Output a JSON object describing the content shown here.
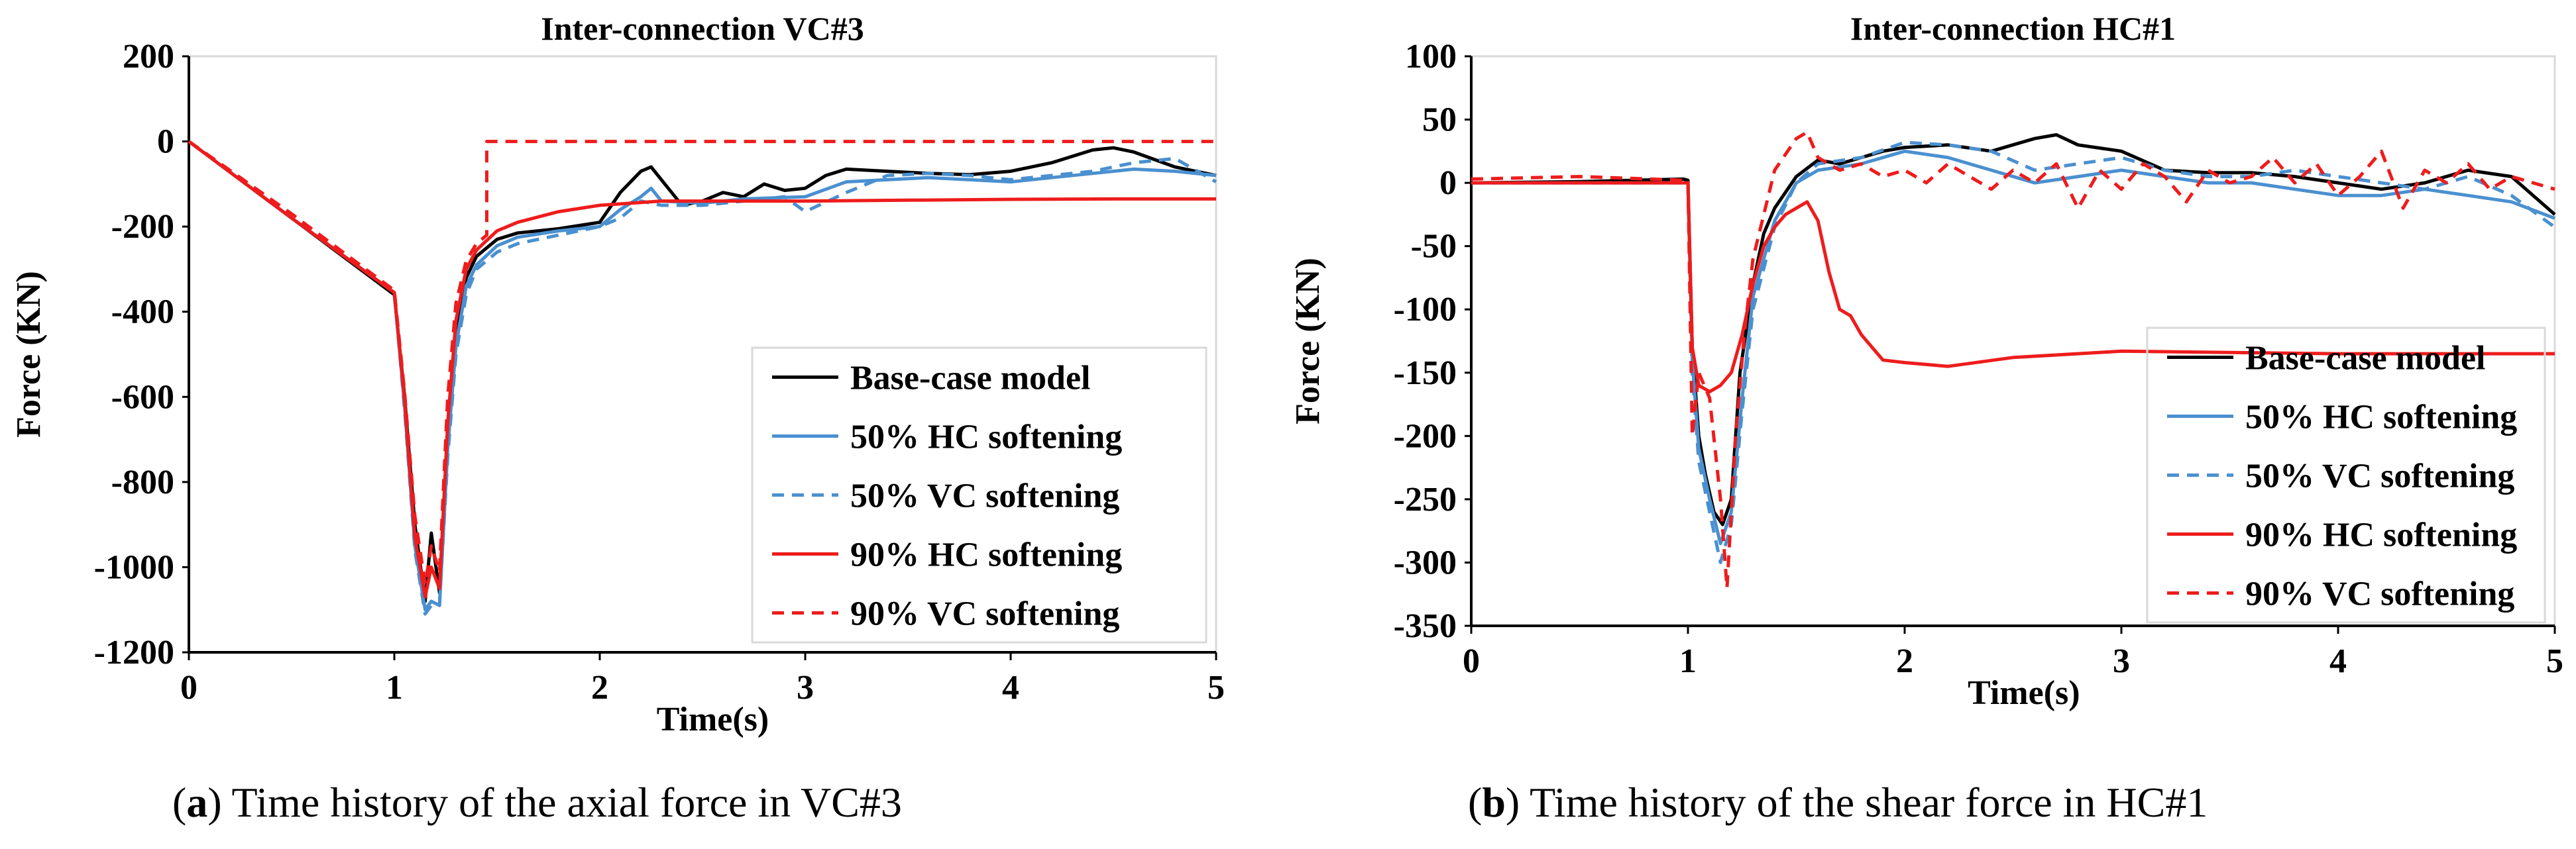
{
  "chart_data": [
    {
      "type": "line",
      "title": "Inter-connection VC#3",
      "xlabel": "Time(s)",
      "ylabel": "Force (KN)",
      "xlim": [
        0,
        5
      ],
      "ylim": [
        -1200,
        200
      ],
      "xticks": [
        "0",
        "1",
        "2",
        "3",
        "4",
        "5"
      ],
      "yticks": [
        "200",
        "0",
        "-200",
        "-400",
        "-600",
        "-800",
        "-1000",
        "-1200"
      ],
      "series": [
        {
          "name": "Base-case model",
          "color": "#000000",
          "dash": false,
          "x": [
            0,
            0.5,
            1.0,
            1.05,
            1.1,
            1.15,
            1.18,
            1.22,
            1.26,
            1.3,
            1.35,
            1.4,
            1.5,
            1.6,
            1.8,
            2.0,
            2.1,
            2.2,
            2.25,
            2.3,
            2.4,
            2.5,
            2.6,
            2.7,
            2.8,
            2.9,
            3.0,
            3.1,
            3.2,
            3.4,
            3.6,
            3.8,
            4.0,
            4.2,
            4.4,
            4.5,
            4.6,
            4.8,
            5.0
          ],
          "y": [
            0,
            -180,
            -360,
            -600,
            -900,
            -1080,
            -920,
            -1060,
            -700,
            -450,
            -320,
            -270,
            -230,
            -215,
            -205,
            -190,
            -120,
            -70,
            -60,
            -90,
            -150,
            -140,
            -120,
            -130,
            -100,
            -115,
            -110,
            -80,
            -65,
            -70,
            -75,
            -78,
            -70,
            -50,
            -20,
            -15,
            -25,
            -60,
            -80
          ]
        },
        {
          "name": "50% HC softening",
          "color": "#4a90d0",
          "dash": false,
          "x": [
            0,
            0.5,
            1.0,
            1.05,
            1.1,
            1.15,
            1.18,
            1.22,
            1.26,
            1.3,
            1.35,
            1.4,
            1.5,
            1.6,
            1.8,
            2.0,
            2.1,
            2.2,
            2.25,
            2.3,
            2.5,
            2.7,
            3.0,
            3.2,
            3.4,
            3.6,
            3.8,
            4.0,
            4.2,
            4.4,
            4.6,
            4.8,
            5.0
          ],
          "y": [
            0,
            -180,
            -355,
            -620,
            -950,
            -1100,
            -1080,
            -1090,
            -720,
            -480,
            -340,
            -290,
            -245,
            -225,
            -210,
            -200,
            -160,
            -130,
            -110,
            -140,
            -145,
            -135,
            -130,
            -95,
            -90,
            -85,
            -90,
            -95,
            -85,
            -75,
            -65,
            -70,
            -80
          ]
        },
        {
          "name": "50% VC softening",
          "color": "#4a90d0",
          "dash": true,
          "x": [
            0,
            0.5,
            1.0,
            1.05,
            1.1,
            1.15,
            1.18,
            1.22,
            1.26,
            1.3,
            1.35,
            1.4,
            1.5,
            1.6,
            1.8,
            2.0,
            2.1,
            2.2,
            2.3,
            2.5,
            2.7,
            2.9,
            3.0,
            3.2,
            3.4,
            3.6,
            3.8,
            4.0,
            4.2,
            4.4,
            4.6,
            4.8,
            5.0
          ],
          "y": [
            0,
            -180,
            -355,
            -630,
            -960,
            -1110,
            -1090,
            -1085,
            -740,
            -500,
            -360,
            -300,
            -260,
            -240,
            -220,
            -200,
            -180,
            -140,
            -150,
            -150,
            -140,
            -130,
            -165,
            -120,
            -80,
            -75,
            -80,
            -90,
            -80,
            -70,
            -50,
            -40,
            -95
          ]
        },
        {
          "name": "90% HC softening",
          "color": "#ee1c1c",
          "dash": false,
          "x": [
            0,
            0.5,
            1.0,
            1.05,
            1.1,
            1.15,
            1.18,
            1.22,
            1.26,
            1.3,
            1.35,
            1.4,
            1.5,
            1.6,
            1.8,
            2.0,
            2.3,
            2.6,
            3.0,
            3.5,
            4.0,
            4.5,
            5.0
          ],
          "y": [
            0,
            -180,
            -355,
            -610,
            -930,
            -1070,
            -1000,
            -1050,
            -660,
            -420,
            -300,
            -255,
            -210,
            -190,
            -165,
            -150,
            -140,
            -140,
            -140,
            -138,
            -136,
            -135,
            -135
          ]
        },
        {
          "name": "90% VC softening",
          "color": "#ee1c1c",
          "dash": true,
          "x": [
            0,
            0.5,
            1.0,
            1.05,
            1.1,
            1.15,
            1.18,
            1.22,
            1.26,
            1.3,
            1.35,
            1.4,
            1.45,
            1.45,
            2.0,
            3.0,
            4.0,
            5.0
          ],
          "y": [
            0,
            -170,
            -350,
            -590,
            -880,
            -1040,
            -950,
            -1010,
            -600,
            -380,
            -280,
            -240,
            -220,
            0,
            0,
            0,
            0,
            0
          ]
        }
      ]
    },
    {
      "type": "line",
      "title": "Inter-connection HC#1",
      "xlabel": "Time(s)",
      "ylabel": "Force (KN)",
      "xlim": [
        0,
        5
      ],
      "ylim": [
        -350,
        100
      ],
      "xticks": [
        "0",
        "1",
        "2",
        "3",
        "4",
        "5"
      ],
      "yticks": [
        "100",
        "50",
        "0",
        "-50",
        "-100",
        "-150",
        "-200",
        "-250",
        "-300",
        "-350"
      ],
      "series": [
        {
          "name": "Base-case model",
          "color": "#000000",
          "dash": false,
          "x": [
            0,
            0.5,
            0.98,
            1.0,
            1.02,
            1.05,
            1.08,
            1.12,
            1.16,
            1.2,
            1.24,
            1.3,
            1.35,
            1.4,
            1.5,
            1.6,
            1.7,
            1.8,
            1.9,
            2.0,
            2.2,
            2.4,
            2.6,
            2.7,
            2.8,
            3.0,
            3.2,
            3.4,
            3.6,
            3.8,
            4.0,
            4.2,
            4.4,
            4.6,
            4.8,
            5.0
          ],
          "y": [
            0,
            1,
            3,
            2,
            -130,
            -200,
            -230,
            -260,
            -270,
            -250,
            -150,
            -80,
            -40,
            -20,
            5,
            18,
            15,
            20,
            25,
            28,
            30,
            25,
            35,
            38,
            30,
            25,
            10,
            8,
            8,
            5,
            0,
            -5,
            0,
            10,
            5,
            -25
          ]
        },
        {
          "name": "50% HC softening",
          "color": "#4a90d0",
          "dash": false,
          "x": [
            0,
            0.5,
            1.0,
            1.02,
            1.05,
            1.1,
            1.15,
            1.2,
            1.25,
            1.3,
            1.4,
            1.5,
            1.6,
            1.8,
            2.0,
            2.2,
            2.4,
            2.6,
            2.8,
            3.0,
            3.2,
            3.4,
            3.6,
            3.8,
            4.0,
            4.2,
            4.4,
            4.6,
            4.8,
            5.0
          ],
          "y": [
            0,
            0,
            0,
            -140,
            -210,
            -250,
            -285,
            -260,
            -170,
            -90,
            -30,
            0,
            10,
            15,
            25,
            20,
            10,
            0,
            5,
            10,
            5,
            0,
            0,
            -5,
            -10,
            -10,
            -5,
            -10,
            -15,
            -28
          ]
        },
        {
          "name": "50% VC softening",
          "color": "#4a90d0",
          "dash": true,
          "x": [
            0,
            0.5,
            1.0,
            1.02,
            1.05,
            1.1,
            1.15,
            1.2,
            1.25,
            1.3,
            1.4,
            1.5,
            1.6,
            1.8,
            2.0,
            2.2,
            2.4,
            2.6,
            2.8,
            3.0,
            3.2,
            3.4,
            3.6,
            3.8,
            4.0,
            4.2,
            4.4,
            4.6,
            4.8,
            5.0
          ],
          "y": [
            0,
            0,
            0,
            -150,
            -220,
            -260,
            -300,
            -270,
            -180,
            -100,
            -35,
            0,
            15,
            20,
            32,
            30,
            25,
            10,
            15,
            20,
            10,
            5,
            5,
            10,
            5,
            0,
            -5,
            5,
            -10,
            -35
          ]
        },
        {
          "name": "90% HC softening",
          "color": "#ee1c1c",
          "dash": false,
          "x": [
            0,
            0.5,
            1.0,
            1.02,
            1.05,
            1.1,
            1.15,
            1.2,
            1.25,
            1.3,
            1.35,
            1.4,
            1.45,
            1.5,
            1.55,
            1.6,
            1.65,
            1.7,
            1.75,
            1.8,
            1.9,
            2.0,
            2.2,
            2.5,
            3.0,
            3.5,
            4.0,
            4.5,
            5.0
          ],
          "y": [
            0,
            0,
            0,
            -130,
            -160,
            -165,
            -160,
            -150,
            -120,
            -80,
            -50,
            -35,
            -25,
            -20,
            -15,
            -30,
            -70,
            -100,
            -105,
            -120,
            -140,
            -142,
            -145,
            -138,
            -133,
            -134,
            -135,
            -135,
            -135
          ]
        },
        {
          "name": "90% VC softening",
          "color": "#ee1c1c",
          "dash": true,
          "x": [
            0,
            0.5,
            1.0,
            1.02,
            1.05,
            1.1,
            1.15,
            1.18,
            1.22,
            1.26,
            1.3,
            1.4,
            1.5,
            1.55,
            1.6,
            1.7,
            1.8,
            1.9,
            2.0,
            2.1,
            2.2,
            2.3,
            2.4,
            2.5,
            2.6,
            2.7,
            2.8,
            2.9,
            3.0,
            3.1,
            3.2,
            3.3,
            3.4,
            3.5,
            3.6,
            3.7,
            3.8,
            3.9,
            4.0,
            4.1,
            4.2,
            4.3,
            4.4,
            4.5,
            4.6,
            4.7,
            4.8,
            4.9,
            5.0
          ],
          "y": [
            3,
            5,
            2,
            -200,
            -150,
            -170,
            -250,
            -320,
            -200,
            -120,
            -60,
            10,
            35,
            40,
            20,
            10,
            15,
            5,
            10,
            0,
            15,
            5,
            -5,
            10,
            0,
            15,
            -20,
            10,
            -5,
            15,
            5,
            -15,
            10,
            0,
            5,
            20,
            0,
            15,
            -10,
            5,
            25,
            -20,
            10,
            0,
            15,
            -5,
            5,
            0,
            -5
          ]
        }
      ]
    }
  ],
  "captions": [
    {
      "letter": "a",
      "text": ") Time history of the axial force in VC#3"
    },
    {
      "letter": "b",
      "text": ") Time history of the shear force in HC#1"
    }
  ]
}
